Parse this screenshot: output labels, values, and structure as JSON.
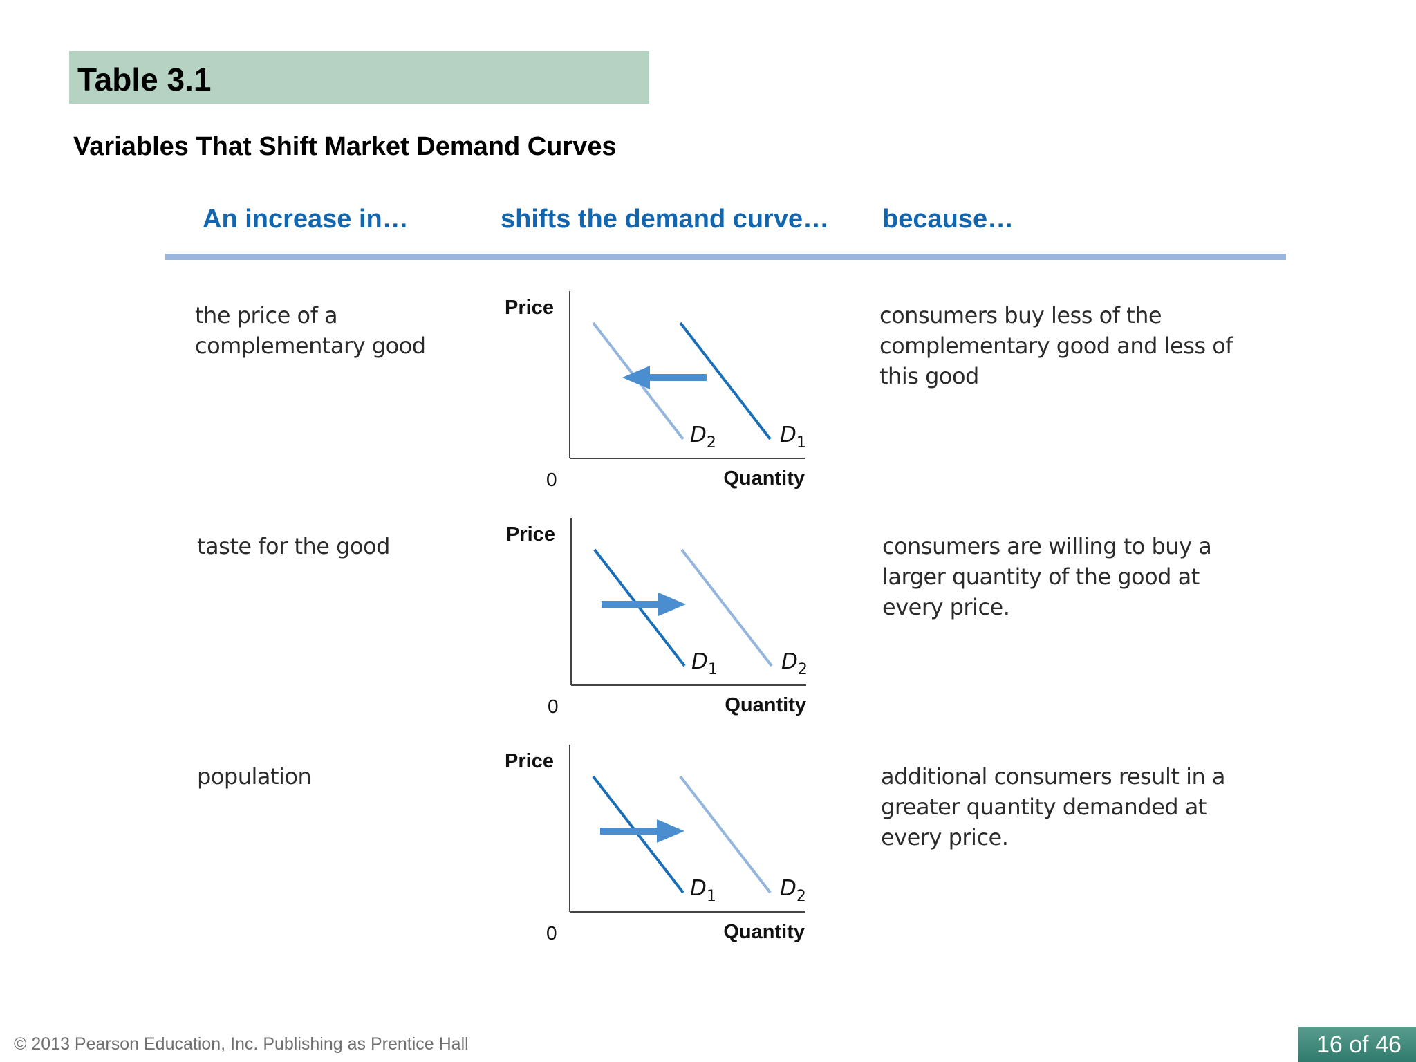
{
  "title": "Table 3.1",
  "subtitle": "Variables That Shift Market Demand Curves",
  "headers": {
    "col1": "An increase in…",
    "col2": "shifts the demand curve…",
    "col3": "because…"
  },
  "rows": [
    {
      "variable": [
        "the price of a",
        "complementary good"
      ],
      "reason": [
        "consumers buy less of the",
        "complementary good and less of",
        "this good"
      ],
      "graph": {
        "y_label": "Price",
        "x_label": "Quantity",
        "origin": "0",
        "left_curve": {
          "letter": "D",
          "sub": "2"
        },
        "right_curve": {
          "letter": "D",
          "sub": "1"
        },
        "shift": "left"
      }
    },
    {
      "variable": [
        "taste for the good"
      ],
      "reason": [
        "consumers are willing to buy a",
        "larger quantity of the good at",
        "every price."
      ],
      "graph": {
        "y_label": "Price",
        "x_label": "Quantity",
        "origin": "0",
        "left_curve": {
          "letter": "D",
          "sub": "1"
        },
        "right_curve": {
          "letter": "D",
          "sub": "2"
        },
        "shift": "right"
      }
    },
    {
      "variable": [
        "population"
      ],
      "reason": [
        "additional consumers result in a",
        "greater quantity demanded at",
        "every price."
      ],
      "graph": {
        "y_label": "Price",
        "x_label": "Quantity",
        "origin": "0",
        "left_curve": {
          "letter": "D",
          "sub": "1"
        },
        "right_curve": {
          "letter": "D",
          "sub": "2"
        },
        "shift": "right"
      }
    }
  ],
  "footer": {
    "copyright": "© 2013 Pearson Education, Inc. Publishing as Prentice Hall",
    "page": "16 of 46"
  },
  "colors": {
    "title_bar": "#b6d2c2",
    "header_text": "#1266b0",
    "header_rule": "#9ab6de",
    "original_curve": "#1a6fb8",
    "new_curve": "#93b5de",
    "arrow": "#4a8ed0"
  }
}
